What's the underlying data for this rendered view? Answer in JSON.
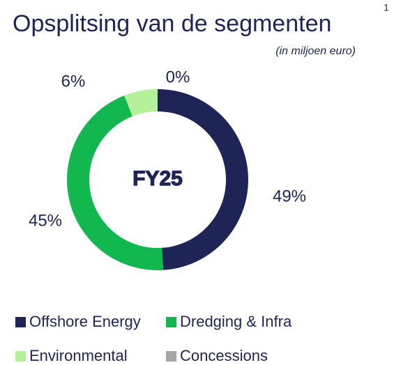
{
  "chart_data": {
    "type": "donut",
    "title": "Opsplitsing van de segmenten",
    "title_note": "1",
    "subtitle": "(in miljoen euro)",
    "center_label": "FY25",
    "categories": [
      "Offshore Energy",
      "Dredging & Infra",
      "Environmental",
      "Concessions"
    ],
    "values": [
      49,
      45,
      6,
      0
    ],
    "value_labels": [
      "49%",
      "45%",
      "6%",
      "0%"
    ],
    "colors": [
      "#1f2456",
      "#12b84f",
      "#b5f09b",
      "#a6a6a6"
    ]
  }
}
